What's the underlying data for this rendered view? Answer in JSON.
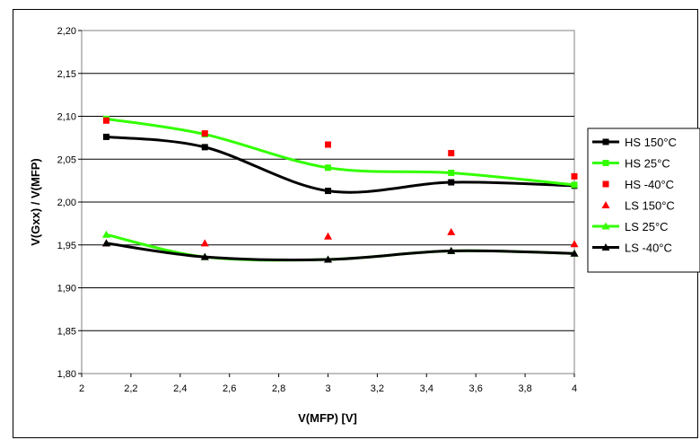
{
  "chart_data": {
    "type": "line",
    "xlabel": "V(MFP) [V]",
    "ylabel": "V(Gxx) / V(MFP)",
    "xlim": [
      2,
      4
    ],
    "ylim": [
      1.8,
      2.2
    ],
    "x_ticks": [
      "2",
      "2,2",
      "2,4",
      "2,6",
      "2,8",
      "3",
      "3,2",
      "3,4",
      "3,6",
      "3,8",
      "4"
    ],
    "y_ticks": [
      "1,80",
      "1,85",
      "1,90",
      "1,95",
      "2,00",
      "2,05",
      "2,10",
      "2,15",
      "2,20"
    ],
    "grid": "horizontal",
    "legend_position": "right",
    "x": [
      2.1,
      2.5,
      3.0,
      3.5,
      4.0
    ],
    "series": [
      {
        "name": "HS 150°C",
        "values": [
          2.076,
          2.064,
          2.013,
          2.023,
          2.019
        ],
        "color": "#000000",
        "marker": "square",
        "line": true
      },
      {
        "name": "HS 25°C",
        "values": [
          2.097,
          2.079,
          2.04,
          2.034,
          2.02
        ],
        "color": "#33ff00",
        "marker": "square",
        "line": true
      },
      {
        "name": "HS -40°C",
        "values": [
          2.095,
          2.08,
          2.067,
          2.057,
          2.03
        ],
        "color": "#ff0000",
        "marker": "square",
        "line": false
      },
      {
        "name": "LS 150°C",
        "values": [
          1.952,
          1.952,
          1.96,
          1.965,
          1.951
        ],
        "color": "#ff0000",
        "marker": "triangle",
        "line": false
      },
      {
        "name": "LS 25°C",
        "values": [
          1.962,
          1.936,
          1.933,
          1.943,
          1.94
        ],
        "color": "#33ff00",
        "marker": "triangle",
        "line": true
      },
      {
        "name": "LS -40°C",
        "values": [
          1.952,
          1.936,
          1.933,
          1.943,
          1.94
        ],
        "color": "#000000",
        "marker": "triangle",
        "line": true
      }
    ]
  }
}
